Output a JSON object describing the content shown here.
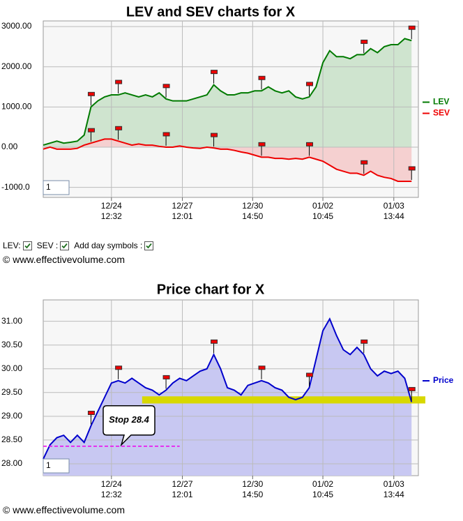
{
  "chart_data": [
    {
      "type": "line",
      "title": "LEV and SEV charts for X",
      "x": [
        0,
        1,
        2,
        3,
        4,
        5,
        6,
        7,
        8,
        9,
        10,
        11,
        12,
        13,
        14,
        15,
        16,
        17,
        18,
        19,
        20,
        21,
        22,
        23,
        24,
        25,
        26,
        27,
        28,
        29,
        30,
        31,
        32,
        33,
        34,
        35,
        36,
        37,
        38,
        39,
        40,
        41,
        42,
        43,
        44,
        45,
        46,
        47,
        48,
        49,
        50,
        51,
        52,
        53,
        54
      ],
      "xlim": [
        0,
        55
      ],
      "xticks": [
        {
          "value": 10,
          "label": "12/24",
          "time": "12:32"
        },
        {
          "value": 20.4,
          "label": "12/27",
          "time": "12:01"
        },
        {
          "value": 30.7,
          "label": "12/30",
          "time": "14:50"
        },
        {
          "value": 41,
          "label": "01/02",
          "time": "10:45"
        },
        {
          "value": 51.4,
          "label": "01/03",
          "time": "13:44"
        }
      ],
      "ylim": [
        -1250,
        3140
      ],
      "yticks": [
        {
          "value": 3000,
          "label": "3000.00"
        },
        {
          "value": 2000,
          "label": "2000.00"
        },
        {
          "value": 1000,
          "label": "1000.00"
        },
        {
          "value": 0,
          "label": "0.00"
        },
        {
          "value": -1000,
          "label": "-1000.0"
        }
      ],
      "grid": true,
      "legend": "right",
      "fill_to": 0,
      "day_symbols": [
        7,
        11,
        18,
        25,
        32,
        39,
        47,
        54
      ],
      "input": "1",
      "series": [
        {
          "name": "LEV",
          "color": "#007a00",
          "fill": "#cfe4cf",
          "values": [
            50,
            100,
            150,
            100,
            120,
            150,
            300,
            1000,
            1150,
            1250,
            1300,
            1300,
            1350,
            1300,
            1250,
            1300,
            1250,
            1350,
            1200,
            1150,
            1150,
            1150,
            1200,
            1250,
            1300,
            1550,
            1400,
            1300,
            1300,
            1350,
            1350,
            1400,
            1400,
            1500,
            1400,
            1350,
            1400,
            1250,
            1200,
            1250,
            1500,
            2100,
            2400,
            2250,
            2250,
            2200,
            2300,
            2300,
            2450,
            2350,
            2500,
            2550,
            2550,
            2700,
            2650
          ]
        },
        {
          "name": "SEV",
          "color": "#ee0000",
          "fill": "#f5d0d0",
          "values": [
            -50,
            0,
            -50,
            -50,
            -50,
            -30,
            50,
            100,
            150,
            200,
            200,
            150,
            100,
            50,
            80,
            50,
            50,
            20,
            0,
            0,
            30,
            0,
            -20,
            -30,
            0,
            -20,
            -50,
            -50,
            -80,
            -120,
            -150,
            -200,
            -250,
            -250,
            -280,
            -280,
            -300,
            -280,
            -300,
            -250,
            -300,
            -350,
            -450,
            -550,
            -600,
            -650,
            -650,
            -700,
            -600,
            -700,
            -750,
            -780,
            -850,
            -850,
            -850
          ]
        }
      ]
    },
    {
      "type": "line",
      "title": "Price chart for X",
      "x": [
        0,
        1,
        2,
        3,
        4,
        5,
        6,
        7,
        8,
        9,
        10,
        11,
        12,
        13,
        14,
        15,
        16,
        17,
        18,
        19,
        20,
        21,
        22,
        23,
        24,
        25,
        26,
        27,
        28,
        29,
        30,
        31,
        32,
        33,
        34,
        35,
        36,
        37,
        38,
        39,
        40,
        41,
        42,
        43,
        44,
        45,
        46,
        47,
        48,
        49,
        50,
        51,
        52,
        53,
        54
      ],
      "xlim": [
        0,
        55
      ],
      "xticks": [
        {
          "value": 10,
          "label": "12/24",
          "time": "12:32"
        },
        {
          "value": 20.4,
          "label": "12/27",
          "time": "12:01"
        },
        {
          "value": 30.7,
          "label": "12/30",
          "time": "14:50"
        },
        {
          "value": 41,
          "label": "01/02",
          "time": "10:45"
        },
        {
          "value": 51.4,
          "label": "01/03",
          "time": "13:44"
        }
      ],
      "ylim": [
        27.75,
        31.45
      ],
      "yticks": [
        {
          "value": 31,
          "label": "31.00"
        },
        {
          "value": 30.5,
          "label": "30.50"
        },
        {
          "value": 30,
          "label": "30.00"
        },
        {
          "value": 29.5,
          "label": "29.50"
        },
        {
          "value": 29,
          "label": "29.00"
        },
        {
          "value": 28.5,
          "label": "28.50"
        },
        {
          "value": 28,
          "label": "28.00"
        }
      ],
      "grid": true,
      "legend": "right",
      "day_symbols": [
        7,
        11,
        18,
        25,
        32,
        39,
        47,
        54
      ],
      "input": "1",
      "band": {
        "from_x": 14.5,
        "range": [
          29.27,
          29.42
        ],
        "color": "#d8d800"
      },
      "stop": {
        "label": "Stop 28.4",
        "value": 28.37,
        "x_end": 20,
        "color": "#ee00ee"
      },
      "series": [
        {
          "name": "Price",
          "color": "#0000cc",
          "fill": "#c8c8f2",
          "values": [
            28.1,
            28.4,
            28.55,
            28.6,
            28.45,
            28.6,
            28.45,
            28.8,
            29.1,
            29.4,
            29.7,
            29.75,
            29.7,
            29.8,
            29.7,
            29.6,
            29.55,
            29.45,
            29.55,
            29.7,
            29.8,
            29.75,
            29.85,
            29.95,
            30.0,
            30.3,
            30.0,
            29.6,
            29.55,
            29.45,
            29.65,
            29.7,
            29.75,
            29.7,
            29.6,
            29.55,
            29.4,
            29.35,
            29.4,
            29.6,
            30.2,
            30.8,
            31.05,
            30.7,
            30.4,
            30.3,
            30.45,
            30.3,
            30.0,
            29.85,
            29.95,
            29.9,
            29.95,
            29.8,
            29.3
          ]
        }
      ]
    }
  ],
  "controls": {
    "lev": "LEV:",
    "sev": "SEV :",
    "day": "Add day symbols :"
  },
  "credits": [
    "© www.effectivevolume.com",
    "© www.effectivevolume.com"
  ]
}
